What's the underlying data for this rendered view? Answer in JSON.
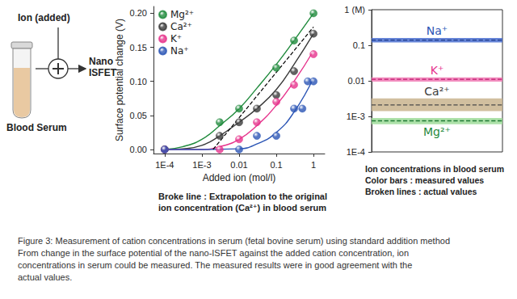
{
  "diagram": {
    "ion_label": "Ion (added)",
    "sensor_label": [
      "Nano",
      "ISFET"
    ],
    "sample_label": "Blood Serum"
  },
  "chart_data": [
    {
      "type": "scatter",
      "xlabel": "Added ion (mol/l)",
      "ylabel": "Surface potential change (V)",
      "log": "x",
      "grid": false,
      "legend": "upper left",
      "xlim": [
        5e-05,
        2
      ],
      "xticks": [
        {
          "value": 0.0001,
          "label": "1E-4"
        },
        {
          "value": 0.001,
          "label": "1E-3"
        },
        0.01,
        0.1,
        1
      ],
      "ylim": [
        -0.006,
        0.21
      ],
      "yticks": [
        {
          "value": 0,
          "label": "0.00"
        },
        {
          "value": 0.05,
          "label": "0.05"
        },
        {
          "value": 0.1,
          "label": "0.10"
        },
        {
          "value": 0.15,
          "label": "0.15"
        },
        {
          "value": 0.2,
          "label": "0.20"
        }
      ],
      "series": [
        {
          "name": "Mg²⁺",
          "color": "#1f8a3c",
          "marker": "circle",
          "x": [
            0.0001,
            0.003,
            0.01,
            0.1,
            0.3,
            1
          ],
          "values": [
            0,
            0.04,
            0.06,
            0.12,
            0.16,
            0.2
          ],
          "fit": {
            "x": [
              0.0001,
              0.0003,
              0.001,
              0.003,
              0.01,
              0.03,
              0.1,
              0.3,
              1
            ],
            "values": [
              0,
              0.004,
              0.015,
              0.035,
              0.06,
              0.09,
              0.125,
              0.16,
              0.2
            ]
          }
        },
        {
          "name": "Ca²⁺",
          "color": "#3a3a3a",
          "marker": "circle",
          "x": [
            0.0001,
            0.003,
            0.01,
            0.03,
            0.1,
            0.3,
            1
          ],
          "values": [
            0,
            0.02,
            0.04,
            0.06,
            0.08,
            0.115,
            0.17
          ],
          "fit": {
            "x": [
              0.0001,
              0.0003,
              0.001,
              0.003,
              0.01,
              0.03,
              0.1,
              0.3,
              1
            ],
            "values": [
              0,
              0.001,
              0.006,
              0.02,
              0.04,
              0.06,
              0.088,
              0.125,
              0.17
            ]
          }
        },
        {
          "name": "K⁺",
          "color": "#e6338c",
          "marker": "circle",
          "x": [
            0.0001,
            0.003,
            0.01,
            0.03,
            0.1,
            0.3,
            1
          ],
          "values": [
            0,
            0,
            0.015,
            0.04,
            0.07,
            0.095,
            0.14
          ],
          "fit": {
            "x": [
              0.0001,
              0.001,
              0.003,
              0.01,
              0.03,
              0.1,
              0.3,
              1
            ],
            "values": [
              0,
              0,
              0.004,
              0.015,
              0.035,
              0.065,
              0.1,
              0.145
            ]
          }
        },
        {
          "name": "Na⁺",
          "color": "#2b55b5",
          "marker": "circle",
          "x": [
            0.0001,
            0.01,
            0.03,
            0.1,
            0.3,
            0.5,
            0.7,
            1
          ],
          "values": [
            0,
            0,
            0.02,
            0.02,
            0.06,
            0.06,
            0.1,
            0.1
          ],
          "fit": {
            "x": [
              0.0001,
              0.001,
              0.01,
              0.03,
              0.1,
              0.3,
              1
            ],
            "values": [
              0,
              0,
              0.001,
              0.008,
              0.025,
              0.055,
              0.105
            ]
          }
        }
      ],
      "extrapolation": {
        "x": [
          0.002,
          1
        ],
        "values": [
          0,
          0.18
        ],
        "color": "#000000",
        "line_style": "dashed"
      },
      "annotation": [
        "Broke line : Extrapolation to the original",
        "ion concentration (Ca²⁺) in blood serum"
      ]
    },
    {
      "type": "range",
      "log": "y",
      "grid": false,
      "tick_labels": "y",
      "ylim": [
        0.0001,
        1
      ],
      "yticks": [
        {
          "value": 1,
          "label": "1 (M)"
        },
        0.1,
        0.01,
        {
          "value": 0.001,
          "label": "1E-3"
        },
        {
          "value": 0.0001,
          "label": "1E-4"
        }
      ],
      "series": [
        {
          "name": "Na⁺",
          "colors": [
            "#4a6fd0",
            "#1c3a8a",
            "#2b55b5"
          ],
          "measured": [
            0.12,
            0.16
          ],
          "actual": 0.14,
          "line_style": "dashed"
        },
        {
          "name": "K⁺",
          "colors": [
            "#f07ab4",
            "#c01870",
            "#e6338c"
          ],
          "measured": [
            0.0095,
            0.0125
          ],
          "actual": 0.011,
          "line_style": "dashed"
        },
        {
          "name": "Ca²⁺",
          "colors": [
            "#c9b48e",
            "#4a4a4a",
            "#3a3a3a"
          ],
          "measured": [
            0.0014,
            0.0032
          ],
          "actual": 0.0021,
          "line_style": "dashed"
        },
        {
          "name": "Mg²⁺",
          "colors": [
            "#9fdc9a",
            "#1f7a34",
            "#1f8a3c"
          ],
          "measured": [
            0.0006,
            0.0009
          ],
          "actual": 0.00075,
          "line_style": "dashed"
        }
      ],
      "annotation": [
        "Ion concentrations in blood serum",
        "Color bars : measured values",
        "Broken lines : actual values"
      ]
    }
  ],
  "caption": [
    "Figure 3: Measurement of cation concentrations in serum (fetal bovine serum) using standard addition method",
    "From change in the surface potential of the nano-ISFET against the added cation concentration, ion",
    "concentrations in serum could be measured. The measured results were in good agreement with the",
    "actual values."
  ]
}
